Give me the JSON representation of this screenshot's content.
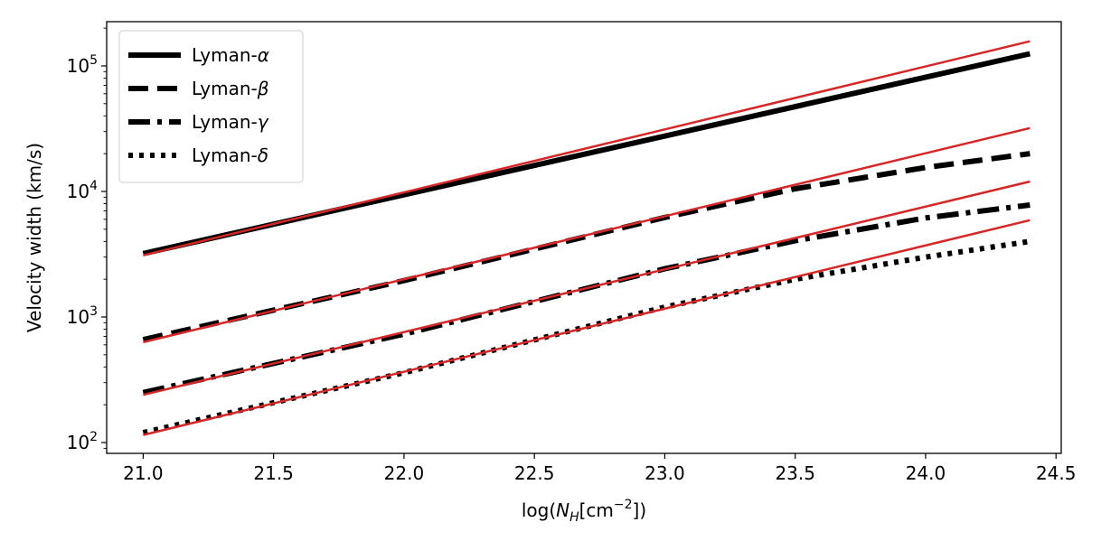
{
  "chart_data": {
    "type": "line",
    "title": "",
    "xlabel": "log(N_H[cm^-2])",
    "xlabel_parts": {
      "pre": "log(",
      "var": "N",
      "sub": "H",
      "unit": "[cm",
      "sup": "−2",
      "post": "])"
    },
    "ylabel": "Velocity width (km/s)",
    "y_scale": "log",
    "xlim": [
      20.86,
      24.52
    ],
    "ylim": [
      82,
      225000
    ],
    "x_ticks": [
      21.0,
      21.5,
      22.0,
      22.5,
      23.0,
      23.5,
      24.0,
      24.5
    ],
    "x_tick_labels": [
      "21.0",
      "21.5",
      "22.0",
      "22.5",
      "23.0",
      "23.5",
      "24.0",
      "24.5"
    ],
    "y_ticks": [
      100,
      1000,
      10000,
      100000
    ],
    "y_tick_labels": [
      {
        "base": "10",
        "exp": "2"
      },
      {
        "base": "10",
        "exp": "3"
      },
      {
        "base": "10",
        "exp": "4"
      },
      {
        "base": "10",
        "exp": "5"
      }
    ],
    "grid": false,
    "legend_position": "top-left",
    "series": [
      {
        "name": "Lyman-",
        "greek": "α",
        "style": "solid",
        "color": "#000000",
        "x": [
          21.0,
          24.4
        ],
        "y": [
          3200,
          125000
        ]
      },
      {
        "name": "Lyman-",
        "greek": "β",
        "style": "dashed",
        "color": "#000000",
        "x": [
          21.0,
          22.0,
          23.0,
          23.5,
          24.0,
          24.4
        ],
        "y": [
          660,
          1950,
          6200,
          10500,
          15500,
          20000
        ]
      },
      {
        "name": "Lyman-",
        "greek": "γ",
        "style": "dashdot",
        "color": "#000000",
        "x": [
          21.0,
          22.0,
          23.0,
          23.5,
          24.0,
          24.4
        ],
        "y": [
          250,
          730,
          2420,
          4050,
          6150,
          7800
        ]
      },
      {
        "name": "Lyman-",
        "greek": "δ",
        "style": "dotted",
        "color": "#000000",
        "x": [
          21.0,
          22.0,
          23.0,
          23.5,
          24.0,
          24.4
        ],
        "y": [
          120,
          360,
          1200,
          2000,
          3000,
          4000
        ]
      }
    ],
    "fit_lines": [
      {
        "color": "#d62728",
        "x": [
          21.0,
          24.4
        ],
        "y": [
          3100,
          157000
        ]
      },
      {
        "color": "#d62728",
        "x": [
          21.0,
          24.4
        ],
        "y": [
          630,
          32000
        ]
      },
      {
        "color": "#d62728",
        "x": [
          21.0,
          24.4
        ],
        "y": [
          240,
          12000
        ]
      },
      {
        "color": "#d62728",
        "x": [
          21.0,
          24.4
        ],
        "y": [
          115,
          5900
        ]
      }
    ]
  }
}
